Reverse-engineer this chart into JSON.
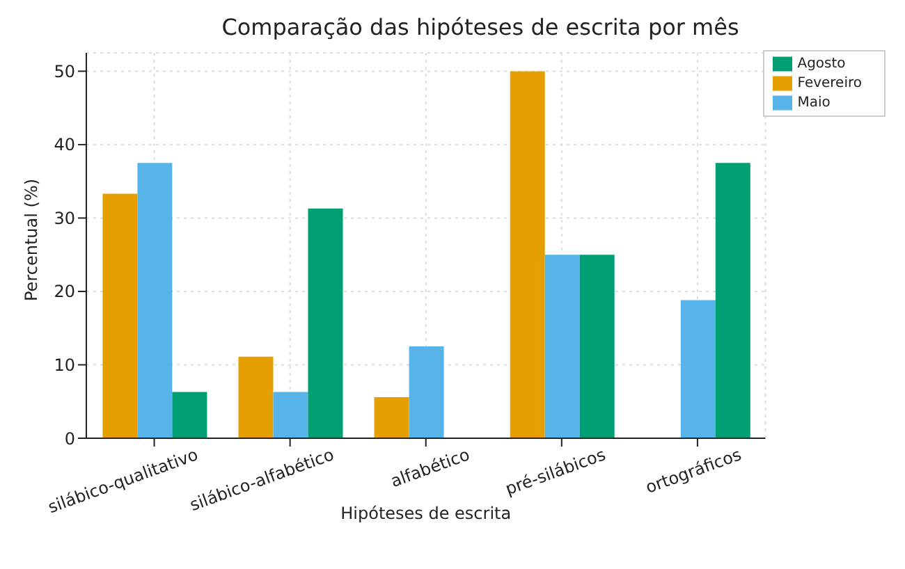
{
  "chart_data": {
    "type": "bar",
    "title": "Comparação das hipóteses de escrita por mês",
    "xlabel": "Hipóteses de escrita",
    "ylabel": "Percentual (%)",
    "categories": [
      "silábico-qualitativo",
      "silábico-alfabético",
      "alfabético",
      "pré-silábicos",
      "ortográficos"
    ],
    "series": [
      {
        "name": "Fevereiro",
        "color": "#e69f00",
        "values": [
          33.3,
          11.1,
          5.6,
          50,
          0
        ]
      },
      {
        "name": "Maio",
        "color": "#56b4e9",
        "values": [
          37.5,
          6.3,
          12.5,
          25,
          18.8
        ]
      },
      {
        "name": "Agosto",
        "color": "#009e73",
        "values": [
          6.3,
          31.3,
          0,
          25,
          37.5
        ]
      }
    ],
    "ylim": [
      0,
      52.5
    ],
    "yticks": [
      0,
      10,
      20,
      30,
      40,
      50
    ],
    "grid": true,
    "legend": "top right"
  }
}
